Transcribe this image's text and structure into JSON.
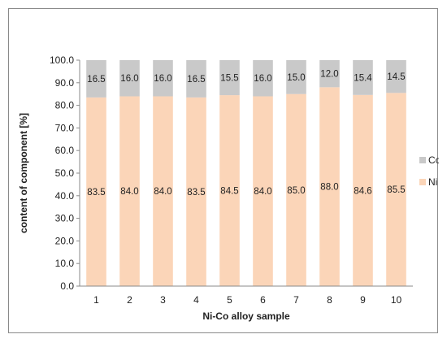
{
  "chart_data": {
    "type": "bar",
    "stacked": true,
    "categories": [
      "1",
      "2",
      "3",
      "4",
      "5",
      "6",
      "7",
      "8",
      "9",
      "10"
    ],
    "series": [
      {
        "name": "Ni",
        "values": [
          83.5,
          84.0,
          84.0,
          83.5,
          84.5,
          84.0,
          85.0,
          88.0,
          84.6,
          85.5
        ],
        "color": "#fbd5b8"
      },
      {
        "name": "Co",
        "values": [
          16.5,
          16.0,
          16.0,
          16.5,
          15.5,
          16.0,
          15.0,
          12.0,
          15.4,
          14.5
        ],
        "color": "#c9c9c9"
      }
    ],
    "title": "",
    "xlabel": "Ni-Co alloy sample",
    "ylabel": "content of component [%]",
    "ylim": [
      0,
      100
    ],
    "yticks": [
      "0.0",
      "10.0",
      "20.0",
      "30.0",
      "40.0",
      "50.0",
      "60.0",
      "70.0",
      "80.0",
      "90.0",
      "100.0"
    ],
    "grid": false,
    "legend": "right"
  }
}
